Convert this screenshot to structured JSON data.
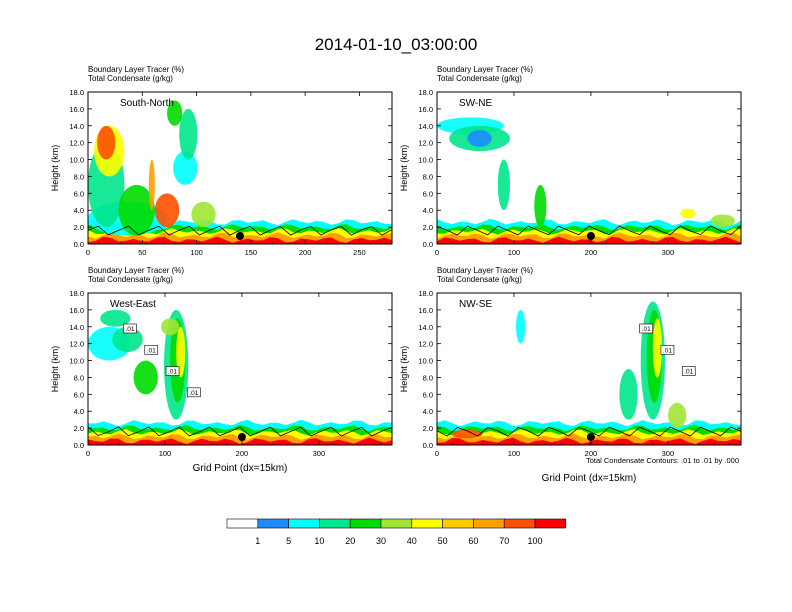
{
  "page_title": "2014-01-10_03:00:00",
  "colorbar": {
    "colors": [
      "#ffffff",
      "#1e8cff",
      "#00ffff",
      "#00e68c",
      "#00dc00",
      "#a0e632",
      "#ffff00",
      "#ffc800",
      "#ffa000",
      "#ff5000",
      "#ff0000"
    ],
    "labels": [
      "1",
      "5",
      "10",
      "20",
      "30",
      "40",
      "50",
      "60",
      "70",
      "100"
    ]
  },
  "contour_note": "Total Condensate Contours: .01 to .01 by .000",
  "chart_data": [
    {
      "type": "heatmap",
      "title": "South-North",
      "subtitle_lines": [
        "Boundary Layer Tracer    (%)",
        "Total Condensate    (g/kg)"
      ],
      "ylabel": "Height (km)",
      "xlabel": "",
      "xlim": [
        0,
        280
      ],
      "ylim": [
        0,
        18
      ],
      "xticks": [
        "0",
        "50",
        "100",
        "150",
        "200",
        "250"
      ],
      "yticks": [
        "0.0",
        "2.0",
        "4.0",
        "6.0",
        "8.0",
        "10.0",
        "12.0",
        "14.0",
        "16.0",
        "18.0"
      ],
      "marker_x": 140,
      "contour_labels": [],
      "contour_color": "#000000"
    },
    {
      "type": "heatmap",
      "title": "SW-NE",
      "subtitle_lines": [
        "Boundary Layer Tracer    (%)",
        "Total Condensate    (g/kg)"
      ],
      "ylabel": "Height (km)",
      "xlabel": "",
      "xlim": [
        0,
        395
      ],
      "ylim": [
        0,
        18
      ],
      "xticks": [
        "0",
        "100",
        "200",
        "300"
      ],
      "yticks": [
        "0.0",
        "2.0",
        "4.0",
        "6.0",
        "8.0",
        "10.0",
        "12.0",
        "14.0",
        "16.0",
        "18.0"
      ],
      "marker_x": 200,
      "contour_labels": [],
      "contour_color": "#000000"
    },
    {
      "type": "heatmap",
      "title": "West-East",
      "subtitle_lines": [
        "Boundary Layer Tracer    (%)",
        "Total Condensate    (g/kg)"
      ],
      "ylabel": "Height (km)",
      "xlabel": "Grid Point (dx=15km)",
      "xlim": [
        0,
        395
      ],
      "ylim": [
        0,
        18
      ],
      "xticks": [
        "0",
        "100",
        "200",
        "300"
      ],
      "yticks": [
        "0.0",
        "2.0",
        "4.0",
        "6.0",
        "8.0",
        "10.0",
        "12.0",
        "14.0",
        "16.0",
        "18.0"
      ],
      "marker_x": 200,
      "contour_labels": [
        ".01",
        ".01",
        ".01",
        ".01"
      ],
      "contour_color": "#000000"
    },
    {
      "type": "heatmap",
      "title": "NW-SE",
      "subtitle_lines": [
        "Boundary Layer Tracer    (%)",
        "Total Condensate    (g/kg)"
      ],
      "ylabel": "Height (km)",
      "xlabel": "Grid Point (dx=15km)",
      "xlim": [
        0,
        395
      ],
      "ylim": [
        0,
        18
      ],
      "xticks": [
        "0",
        "100",
        "200",
        "300"
      ],
      "yticks": [
        "0.0",
        "2.0",
        "4.0",
        "6.0",
        "8.0",
        "10.0",
        "12.0",
        "14.0",
        "16.0",
        "18.0"
      ],
      "marker_x": 200,
      "contour_labels": [
        ".01",
        ".01",
        ".01"
      ],
      "contour_color": "#000000"
    }
  ]
}
